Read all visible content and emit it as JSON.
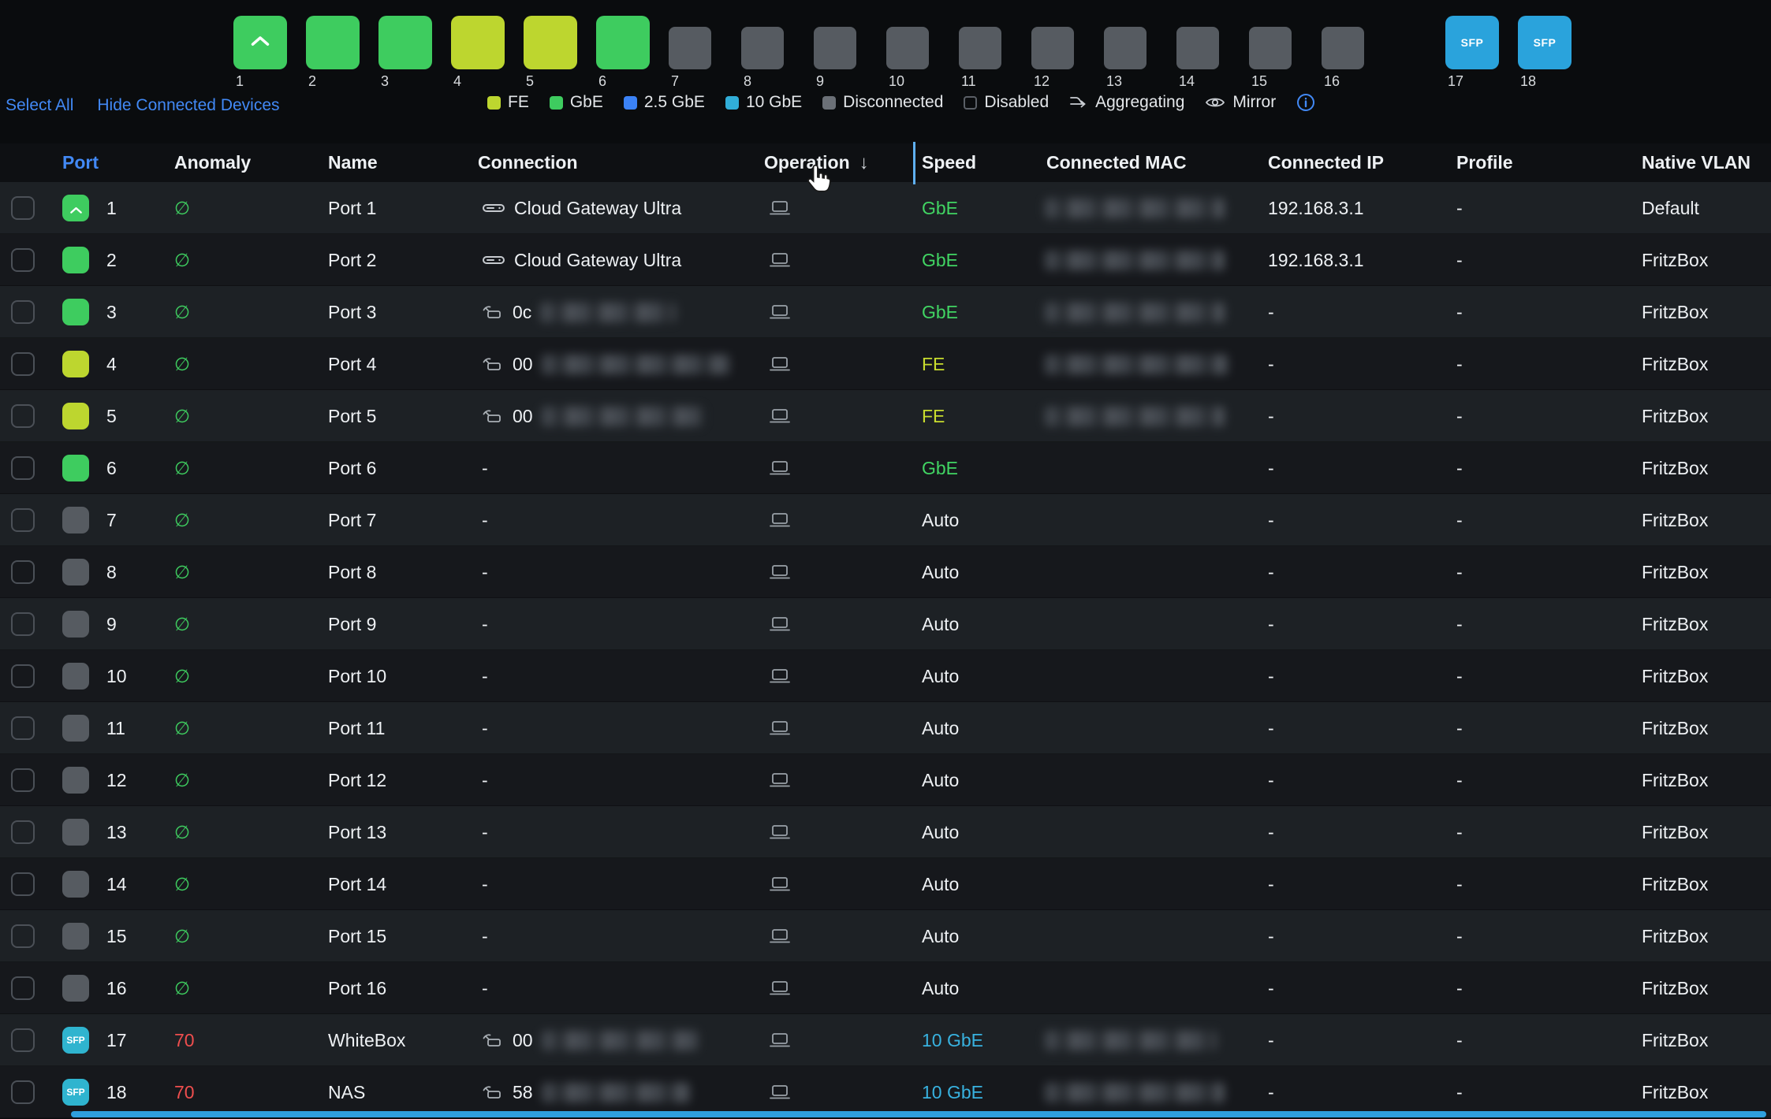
{
  "colors": {
    "gbe_green": "#3ecc5f",
    "fe_yellow": "#bdd62f",
    "two_half_gbe_blue": "#3b82f6",
    "ten_gbe_teal": "#31aed8",
    "disconnected_gray": "#6b7077",
    "link_blue": "#4289f5",
    "anomaly_red": "#ef4e4e"
  },
  "port_selector": {
    "tiles": [
      {
        "num": "1",
        "type": "gbe",
        "uplink": true
      },
      {
        "num": "2",
        "type": "gbe"
      },
      {
        "num": "3",
        "type": "gbe"
      },
      {
        "num": "4",
        "type": "fe"
      },
      {
        "num": "5",
        "type": "fe"
      },
      {
        "num": "6",
        "type": "gbe"
      },
      {
        "num": "7",
        "type": "off"
      },
      {
        "num": "8",
        "type": "off"
      },
      {
        "num": "9",
        "type": "off"
      },
      {
        "num": "10",
        "type": "off"
      },
      {
        "num": "11",
        "type": "off"
      },
      {
        "num": "12",
        "type": "off"
      },
      {
        "num": "13",
        "type": "off"
      },
      {
        "num": "14",
        "type": "off"
      },
      {
        "num": "15",
        "type": "off"
      },
      {
        "num": "16",
        "type": "off"
      },
      {
        "num": "17",
        "type": "sfp",
        "label": "SFP",
        "gap_before": true
      },
      {
        "num": "18",
        "type": "sfp",
        "label": "SFP"
      }
    ]
  },
  "links": {
    "select_all": "Select All",
    "hide_connected": "Hide Connected Devices"
  },
  "legend": {
    "swatches": [
      {
        "label": "FE",
        "color": "#bdd62f"
      },
      {
        "label": "GbE",
        "color": "#3ecc5f"
      },
      {
        "label": "2.5 GbE",
        "color": "#3b82f6"
      },
      {
        "label": "10 GbE",
        "color": "#31aed8"
      },
      {
        "label": "Disconnected",
        "color": "#6b7077"
      },
      {
        "label": "Disabled",
        "color": "outline"
      }
    ],
    "icon_items": [
      {
        "label": "Aggregating",
        "icon": "aggregating-icon"
      },
      {
        "label": "Mirror",
        "icon": "mirror-eye-icon"
      }
    ]
  },
  "table": {
    "columns": [
      {
        "key": "port",
        "label": "Port",
        "sorted": true
      },
      {
        "key": "anomaly",
        "label": "Anomaly"
      },
      {
        "key": "name",
        "label": "Name"
      },
      {
        "key": "connection",
        "label": "Connection"
      },
      {
        "key": "operation",
        "label": "Operation",
        "sort_arrow": "↓"
      },
      {
        "key": "speed",
        "label": "Speed"
      },
      {
        "key": "mac",
        "label": "Connected MAC"
      },
      {
        "key": "ip",
        "label": "Connected IP"
      },
      {
        "key": "profile",
        "label": "Profile"
      },
      {
        "key": "vlan",
        "label": "Native VLAN"
      }
    ],
    "rows": [
      {
        "port": "1",
        "tile": "gbe",
        "uplink": true,
        "anomaly": "∅",
        "anomaly_state": "ok",
        "name": "Port 1",
        "conn_icon": "gateway-icon",
        "conn_text": "Cloud Gateway Ultra",
        "conn_prefix": "",
        "conn_redacted": 0,
        "speed": "GbE",
        "speed_color": "green",
        "mac_redacted": 228,
        "ip": "192.168.3.1",
        "profile": "-",
        "vlan": "Default"
      },
      {
        "port": "2",
        "tile": "gbe",
        "anomaly": "∅",
        "anomaly_state": "ok",
        "name": "Port 2",
        "conn_icon": "gateway-icon",
        "conn_text": "Cloud Gateway Ultra",
        "conn_prefix": "",
        "conn_redacted": 0,
        "speed": "GbE",
        "speed_color": "green",
        "mac_redacted": 228,
        "ip": "192.168.3.1",
        "profile": "-",
        "vlan": "FritzBox"
      },
      {
        "port": "3",
        "tile": "gbe",
        "anomaly": "∅",
        "anomaly_state": "ok",
        "name": "Port 3",
        "conn_icon": "client-device-icon",
        "conn_text": "",
        "conn_prefix": "0c",
        "conn_redacted": 172,
        "speed": "GbE",
        "speed_color": "green",
        "mac_redacted": 228,
        "ip": "-",
        "profile": "-",
        "vlan": "FritzBox"
      },
      {
        "port": "4",
        "tile": "fe",
        "anomaly": "∅",
        "anomaly_state": "ok",
        "name": "Port 4",
        "conn_icon": "client-device-icon",
        "conn_text": "",
        "conn_prefix": "00",
        "conn_redacted": 238,
        "speed": "FE",
        "speed_color": "yellow",
        "mac_redacted": 232,
        "ip": "-",
        "profile": "-",
        "vlan": "FritzBox"
      },
      {
        "port": "5",
        "tile": "fe",
        "anomaly": "∅",
        "anomaly_state": "ok",
        "name": "Port 5",
        "conn_icon": "client-device-icon",
        "conn_text": "",
        "conn_prefix": "00",
        "conn_redacted": 205,
        "speed": "FE",
        "speed_color": "yellow",
        "mac_redacted": 228,
        "ip": "-",
        "profile": "-",
        "vlan": "FritzBox"
      },
      {
        "port": "6",
        "tile": "gbe",
        "anomaly": "∅",
        "anomaly_state": "ok",
        "name": "Port 6",
        "conn_text": "-",
        "conn_prefix": "",
        "conn_redacted": 0,
        "speed": "GbE",
        "speed_color": "green",
        "mac_redacted": 0,
        "ip": "-",
        "profile": "-",
        "vlan": "FritzBox"
      },
      {
        "port": "7",
        "tile": "off",
        "anomaly": "∅",
        "anomaly_state": "ok",
        "name": "Port 7",
        "conn_text": "-",
        "conn_prefix": "",
        "conn_redacted": 0,
        "speed": "Auto",
        "speed_color": "plain",
        "mac_redacted": 0,
        "ip": "-",
        "profile": "-",
        "vlan": "FritzBox"
      },
      {
        "port": "8",
        "tile": "off",
        "anomaly": "∅",
        "anomaly_state": "ok",
        "name": "Port 8",
        "conn_text": "-",
        "conn_prefix": "",
        "conn_redacted": 0,
        "speed": "Auto",
        "speed_color": "plain",
        "mac_redacted": 0,
        "ip": "-",
        "profile": "-",
        "vlan": "FritzBox"
      },
      {
        "port": "9",
        "tile": "off",
        "anomaly": "∅",
        "anomaly_state": "ok",
        "name": "Port 9",
        "conn_text": "-",
        "conn_prefix": "",
        "conn_redacted": 0,
        "speed": "Auto",
        "speed_color": "plain",
        "mac_redacted": 0,
        "ip": "-",
        "profile": "-",
        "vlan": "FritzBox"
      },
      {
        "port": "10",
        "tile": "off",
        "anomaly": "∅",
        "anomaly_state": "ok",
        "name": "Port 10",
        "conn_text": "-",
        "conn_prefix": "",
        "conn_redacted": 0,
        "speed": "Auto",
        "speed_color": "plain",
        "mac_redacted": 0,
        "ip": "-",
        "profile": "-",
        "vlan": "FritzBox"
      },
      {
        "port": "11",
        "tile": "off",
        "anomaly": "∅",
        "anomaly_state": "ok",
        "name": "Port 11",
        "conn_text": "-",
        "conn_prefix": "",
        "conn_redacted": 0,
        "speed": "Auto",
        "speed_color": "plain",
        "mac_redacted": 0,
        "ip": "-",
        "profile": "-",
        "vlan": "FritzBox"
      },
      {
        "port": "12",
        "tile": "off",
        "anomaly": "∅",
        "anomaly_state": "ok",
        "name": "Port 12",
        "conn_text": "-",
        "conn_prefix": "",
        "conn_redacted": 0,
        "speed": "Auto",
        "speed_color": "plain",
        "mac_redacted": 0,
        "ip": "-",
        "profile": "-",
        "vlan": "FritzBox"
      },
      {
        "port": "13",
        "tile": "off",
        "anomaly": "∅",
        "anomaly_state": "ok",
        "name": "Port 13",
        "conn_text": "-",
        "conn_prefix": "",
        "conn_redacted": 0,
        "speed": "Auto",
        "speed_color": "plain",
        "mac_redacted": 0,
        "ip": "-",
        "profile": "-",
        "vlan": "FritzBox"
      },
      {
        "port": "14",
        "tile": "off",
        "anomaly": "∅",
        "anomaly_state": "ok",
        "name": "Port 14",
        "conn_text": "-",
        "conn_prefix": "",
        "conn_redacted": 0,
        "speed": "Auto",
        "speed_color": "plain",
        "mac_redacted": 0,
        "ip": "-",
        "profile": "-",
        "vlan": "FritzBox"
      },
      {
        "port": "15",
        "tile": "off",
        "anomaly": "∅",
        "anomaly_state": "ok",
        "name": "Port 15",
        "conn_text": "-",
        "conn_prefix": "",
        "conn_redacted": 0,
        "speed": "Auto",
        "speed_color": "plain",
        "mac_redacted": 0,
        "ip": "-",
        "profile": "-",
        "vlan": "FritzBox"
      },
      {
        "port": "16",
        "tile": "off",
        "anomaly": "∅",
        "anomaly_state": "ok",
        "name": "Port 16",
        "conn_text": "-",
        "conn_prefix": "",
        "conn_redacted": 0,
        "speed": "Auto",
        "speed_color": "plain",
        "mac_redacted": 0,
        "ip": "-",
        "profile": "-",
        "vlan": "FritzBox"
      },
      {
        "port": "17",
        "tile": "sfp",
        "tile_label": "SFP",
        "anomaly": "70",
        "anomaly_state": "alert",
        "name": "WhiteBox",
        "conn_icon": "client-device-icon",
        "conn_text": "",
        "conn_prefix": "00",
        "conn_redacted": 198,
        "speed": "10 GbE",
        "speed_color": "teal",
        "mac_redacted": 218,
        "ip": "-",
        "profile": "-",
        "vlan": "FritzBox"
      },
      {
        "port": "18",
        "tile": "sfp",
        "tile_label": "SFP",
        "anomaly": "70",
        "anomaly_state": "alert",
        "name": "NAS",
        "conn_icon": "client-device-icon",
        "conn_text": "",
        "conn_prefix": "58",
        "conn_redacted": 188,
        "speed": "10 GbE",
        "speed_color": "teal",
        "mac_redacted": 228,
        "ip": "-",
        "profile": "-",
        "vlan": "FritzBox"
      }
    ]
  }
}
